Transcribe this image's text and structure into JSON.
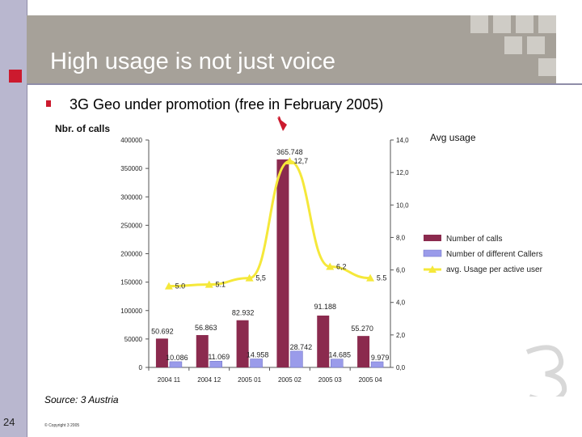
{
  "slide": {
    "title": "High usage is not just voice",
    "bullet": "3G Geo under promotion (free in February 2005)",
    "source": "Source: 3 Austria",
    "page_number": "24",
    "copyright": "© Copyright 3 2005",
    "colors": {
      "brand_red": "#cc1a2e",
      "header_gray": "#a6a199",
      "sidebar": "#b9b7cf"
    }
  },
  "chart_data": {
    "type": "bar",
    "categories": [
      "2004 11",
      "2004 12",
      "2005 01",
      "2005 02",
      "2005 03",
      "2005 04"
    ],
    "series": [
      {
        "name": "Number of calls",
        "kind": "bar",
        "axis": "left",
        "color": "#8b2a4e",
        "values": [
          50692,
          56863,
          82932,
          365748,
          91188,
          55270
        ],
        "labels": [
          "50.692",
          "56.863",
          "82.932",
          "365.748",
          "91.188",
          "55.270"
        ]
      },
      {
        "name": "Number of different Callers",
        "kind": "bar",
        "axis": "left",
        "color": "#9a9bea",
        "values": [
          10086,
          11069,
          14958,
          28742,
          14685,
          9979
        ],
        "labels": [
          "10.086",
          "11.069",
          "14.958",
          "28.742",
          "14.685",
          "9.979"
        ]
      },
      {
        "name": "avg. Usage per active user",
        "kind": "line",
        "axis": "right",
        "color": "#f5e83a",
        "values": [
          5.0,
          5.1,
          5.5,
          12.7,
          6.2,
          5.5
        ],
        "labels": [
          "5.0",
          "5.1",
          "5,5",
          "12,7",
          "6,2",
          "5.5"
        ]
      }
    ],
    "y_left": {
      "label": "Nbr. of calls",
      "range": [
        0,
        400000
      ],
      "ticks": [
        "0",
        "50000",
        "100000",
        "150000",
        "200000",
        "250000",
        "300000",
        "350000",
        "400000"
      ]
    },
    "y_right": {
      "label": "Avg usage",
      "range": [
        0,
        14
      ],
      "ticks": [
        "0,0",
        "2,0",
        "4,0",
        "6,0",
        "8,0",
        "10,0",
        "12,0",
        "14,0"
      ]
    },
    "legend": "right",
    "grid": false,
    "annotation": "arrow above 2005 02"
  }
}
